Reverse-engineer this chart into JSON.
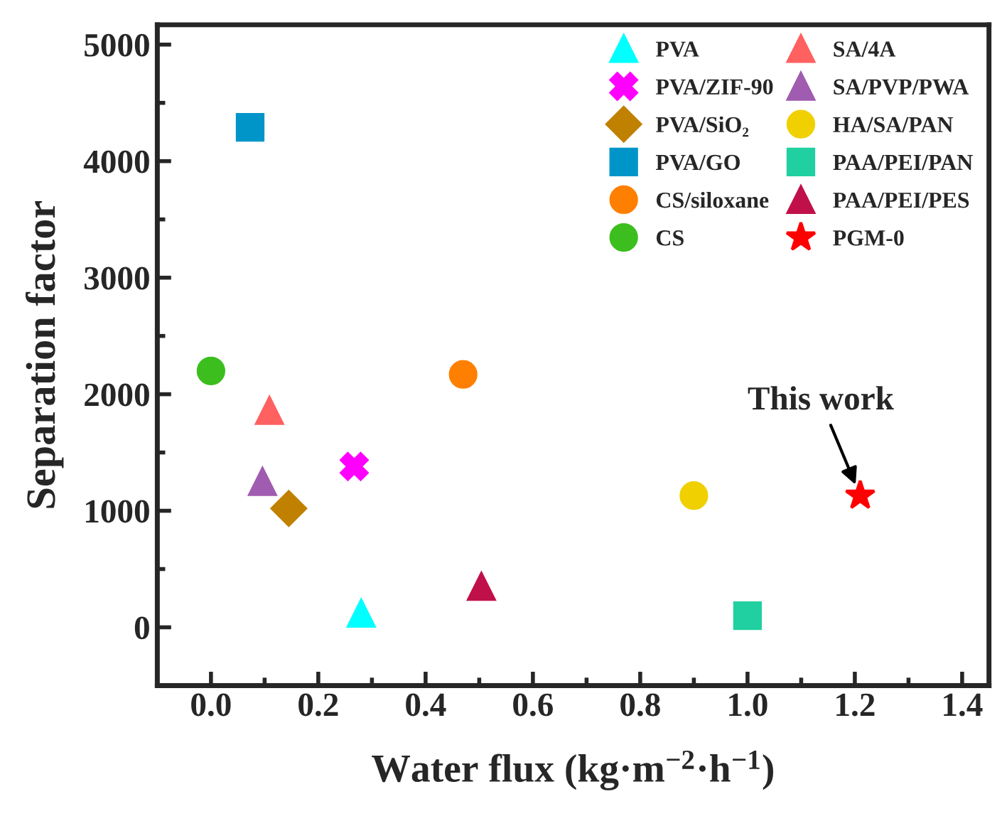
{
  "chart_data": {
    "type": "scatter",
    "xlabel": "Water flux (kg·m$^{−2}$·h$^{−1}$)",
    "ylabel": "Separation factor",
    "xlim": [
      -0.1,
      1.45
    ],
    "ylim": [
      -500,
      5170
    ],
    "xticks": [
      {
        "value": 0.0,
        "label": "0.0"
      },
      {
        "value": 0.1,
        "label": null
      },
      {
        "value": 0.2,
        "label": "0.2"
      },
      {
        "value": 0.3,
        "label": null
      },
      {
        "value": 0.4,
        "label": "0.4"
      },
      {
        "value": 0.5,
        "label": null
      },
      {
        "value": 0.6,
        "label": "0.6"
      },
      {
        "value": 0.7,
        "label": null
      },
      {
        "value": 0.8,
        "label": "0.8"
      },
      {
        "value": 0.9,
        "label": null
      },
      {
        "value": 1.0,
        "label": "1.0"
      },
      {
        "value": 1.1,
        "label": null
      },
      {
        "value": 1.2,
        "label": "1.2"
      },
      {
        "value": 1.3,
        "label": null
      },
      {
        "value": 1.4,
        "label": "1.4"
      }
    ],
    "yticks": [
      0,
      {
        "value": 500,
        "label": null
      },
      1000,
      {
        "value": 1500,
        "label": null
      },
      2000,
      {
        "value": 2500,
        "label": null
      },
      3000,
      {
        "value": 3500,
        "label": null
      },
      4000,
      {
        "value": 4500,
        "label": null
      },
      5000
    ],
    "grid": false,
    "legend": "top right",
    "annotations": [
      {
        "text": "This work",
        "x": 1.21,
        "y": 1130
      }
    ],
    "series": [
      {
        "name": "PVA",
        "color": "#00ffff",
        "marker": "triangle",
        "x": [
          0.28
        ],
        "values": [
          120
        ]
      },
      {
        "name": "PVA/ZIF-90",
        "color": "#ff00ff",
        "marker": "cross",
        "x": [
          0.267
        ],
        "values": [
          1380
        ]
      },
      {
        "name": "PVA/SiO₂",
        "color": "#c08000",
        "marker": "diamond",
        "x": [
          0.145
        ],
        "values": [
          1020
        ]
      },
      {
        "name": "PVA/GO",
        "color": "#0095c8",
        "marker": "square",
        "x": [
          0.073
        ],
        "values": [
          4290
        ]
      },
      {
        "name": "CS/siloxane",
        "color": "#ff8000",
        "marker": "circle",
        "x": [
          0.47
        ],
        "values": [
          2170
        ]
      },
      {
        "name": "CS",
        "color": "#3cbe1e",
        "marker": "circle",
        "x": [
          0.0
        ],
        "values": [
          2200
        ]
      },
      {
        "name": "SA/4A",
        "color": "#ff6060",
        "marker": "triangle",
        "x": [
          0.109
        ],
        "values": [
          1860
        ]
      },
      {
        "name": "SA/PVP/PWA",
        "color": "#a05cb0",
        "marker": "triangle",
        "x": [
          0.096
        ],
        "values": [
          1250
        ]
      },
      {
        "name": "HA/SA/PAN",
        "color": "#f0d000",
        "marker": "circle",
        "x": [
          0.9
        ],
        "values": [
          1130
        ]
      },
      {
        "name": "PAA/PEI/PAN",
        "color": "#20d0a0",
        "marker": "square",
        "x": [
          1.0
        ],
        "values": [
          100
        ]
      },
      {
        "name": "PAA/PEI/PES",
        "color": "#c0104a",
        "marker": "triangle",
        "x": [
          0.504
        ],
        "values": [
          350
        ]
      },
      {
        "name": "PGM-0",
        "color": "#ff0000",
        "marker": "star",
        "x": [
          1.21
        ],
        "values": [
          1130
        ]
      }
    ]
  }
}
